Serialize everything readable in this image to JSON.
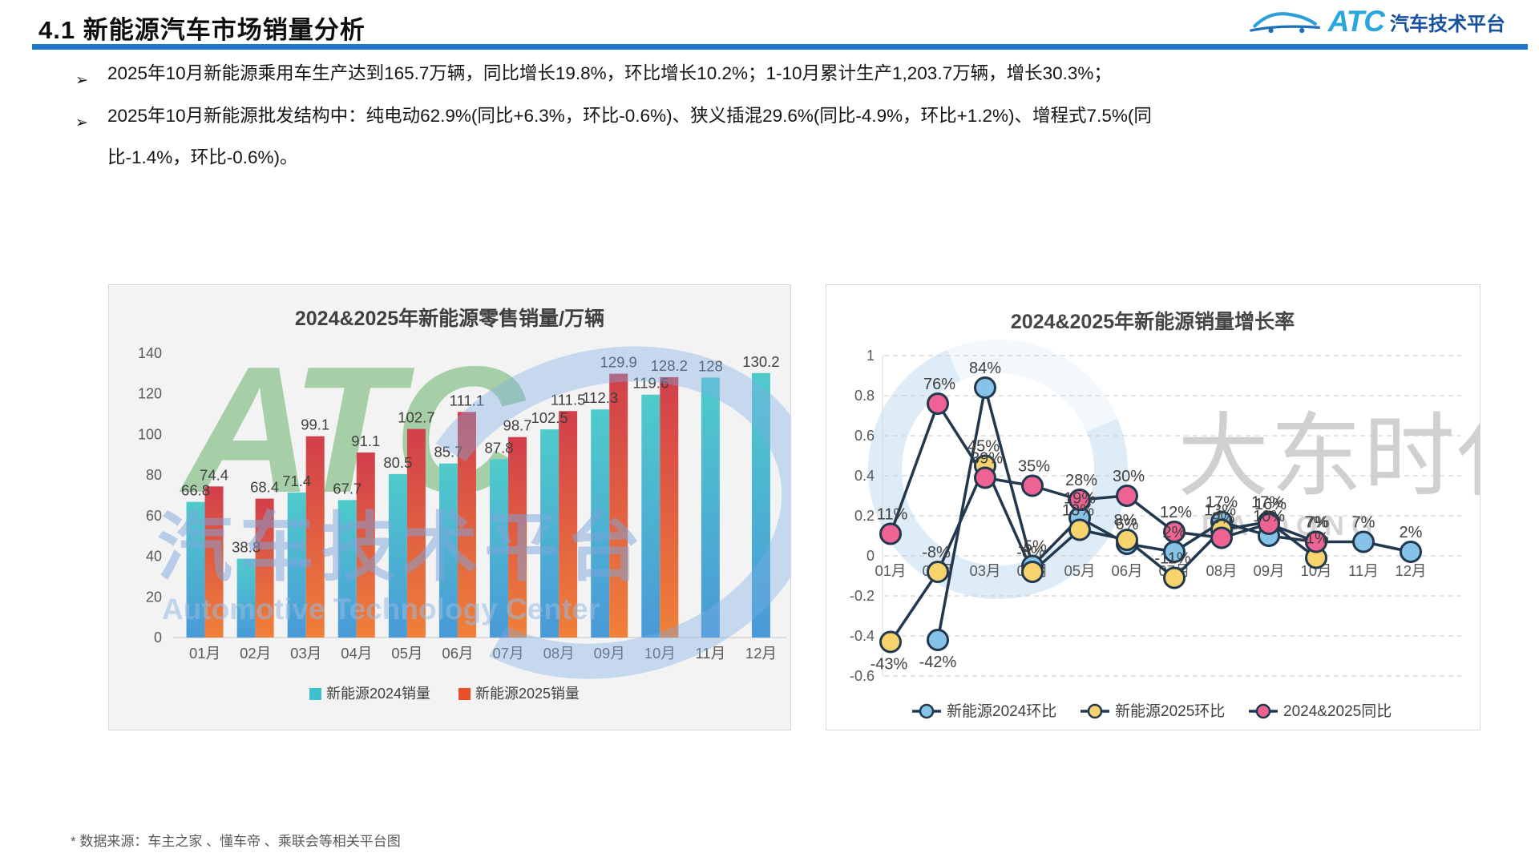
{
  "header": {
    "title": "4.1 新能源汽车市场销量分析"
  },
  "logo": {
    "brand": "ATC",
    "subtext": "汽车技术平台"
  },
  "bullets": [
    "2025年10月新能源乘用车生产达到165.7万辆，同比增长19.8%，环比增长10.2%；1-10月累计生产1,203.7万辆，增长30.3%；",
    "2025年10月新能源批发结构中：纯电动62.9%(同比+6.3%，环比-0.6%)、狭义插混29.6%(同比-4.9%，环比+1.2%)、增程式7.5%(同比-1.4%，环比-0.6%)。"
  ],
  "footer": {
    "note": "* 数据来源：车主之家 、懂车帝 、乘联会等相关平台图"
  },
  "watermarks": {
    "atc": "ATC",
    "cn": "汽车技术平台",
    "en": "Automotive Technology Center",
    "dadong": "大东时代",
    "dadong_en": "DA DONG"
  },
  "chart_data": [
    {
      "type": "bar",
      "title": "2024&2025年新能源零售销量/万辆",
      "categories": [
        "01月",
        "02月",
        "03月",
        "04月",
        "05月",
        "06月",
        "07月",
        "08月",
        "09月",
        "10月",
        "11月",
        "12月"
      ],
      "series": [
        {
          "name": "新能源2024销量",
          "legend_color": "#3EC1CE",
          "color_top": "#4FCBCB",
          "color_bottom": "#4A99D8",
          "values": [
            66.8,
            38.8,
            71.4,
            67.7,
            80.5,
            85.7,
            87.8,
            102.5,
            112.3,
            119.6,
            128,
            130.2
          ]
        },
        {
          "name": "新能源2025销量",
          "legend_color": "#E84E29",
          "color_top": "#D13F4B",
          "color_bottom": "#F08038",
          "values": [
            74.4,
            68.4,
            99.1,
            91.1,
            102.7,
            111.1,
            98.7,
            111.5,
            129.9,
            128.2,
            null,
            null
          ]
        }
      ],
      "xlabel": "",
      "ylabel": "",
      "ylim": [
        0,
        140
      ],
      "ytick_step": 20,
      "grid": false,
      "legend_position": "bottom"
    },
    {
      "type": "line",
      "title": "2024&2025年新能源销量增长率",
      "categories": [
        "01月",
        "02月",
        "03月",
        "04月",
        "05月",
        "06月",
        "07月",
        "08月",
        "09月",
        "10月",
        "11月",
        "12月"
      ],
      "line_color": "#22384E",
      "series": [
        {
          "name": "新能源2024环比",
          "marker_color": "#85C3E8",
          "values": [
            null,
            -0.42,
            0.84,
            -0.05,
            0.19,
            0.06,
            0.02,
            0.17,
            0.1,
            0.07,
            0.07,
            0.02
          ],
          "labels": [
            "",
            "-42%",
            "84%",
            "-5%",
            "19%",
            "6%",
            "2%",
            "17%",
            "10%",
            "7%",
            "7%",
            "2%"
          ]
        },
        {
          "name": "新能源2025环比",
          "marker_color": "#F7D36E",
          "values": [
            -0.43,
            -0.08,
            0.45,
            -0.08,
            0.13,
            0.08,
            -0.11,
            0.13,
            0.17,
            -0.01,
            null,
            null
          ],
          "labels": [
            "-43%",
            "-8%",
            "45%",
            "-8%",
            "13%",
            "8%",
            "-11%",
            "13%",
            "17%",
            "-1%",
            "",
            ""
          ]
        },
        {
          "name": "2024&2025同比",
          "marker_color": "#EE6393",
          "values": [
            0.11,
            0.76,
            0.39,
            0.35,
            0.28,
            0.3,
            0.12,
            0.09,
            0.16,
            0.07,
            null,
            null
          ],
          "labels": [
            "11%",
            "76%",
            "39%",
            "35%",
            "28%",
            "30%",
            "12%",
            "9%",
            "16%",
            "7%",
            "",
            ""
          ]
        }
      ],
      "xlabel": "",
      "ylabel": "",
      "ylim": [
        -0.6,
        1
      ],
      "ytick_step": 0.2,
      "grid": "horizontal-dashed",
      "legend_position": "bottom"
    }
  ]
}
